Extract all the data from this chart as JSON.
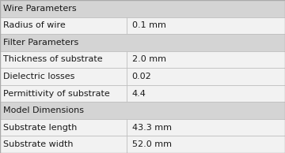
{
  "sections": [
    {
      "header": "Wire Parameters",
      "rows": [
        [
          "Radius of wire",
          "0.1 mm"
        ]
      ]
    },
    {
      "header": "Filter Parameters",
      "rows": [
        [
          "Thickness of substrate",
          "2.0 mm"
        ],
        [
          "Dielectric losses",
          "0.02"
        ],
        [
          "Permittivity of substrate",
          "4.4"
        ]
      ]
    },
    {
      "header": "Model Dimensions",
      "rows": [
        [
          "Substrate length",
          "43.3 mm"
        ],
        [
          "Substrate width",
          "52.0 mm"
        ]
      ]
    }
  ],
  "header_bg": "#d4d4d4",
  "row_bg": "#f2f2f2",
  "border_color": "#aaaaaa",
  "cell_divider_color": "#bbbbbb",
  "text_color": "#1a1a1a",
  "col_split": 0.445,
  "font_size": 8.0,
  "header_font_size": 8.0,
  "fig_width": 3.6,
  "fig_height": 1.94,
  "dpi": 100
}
